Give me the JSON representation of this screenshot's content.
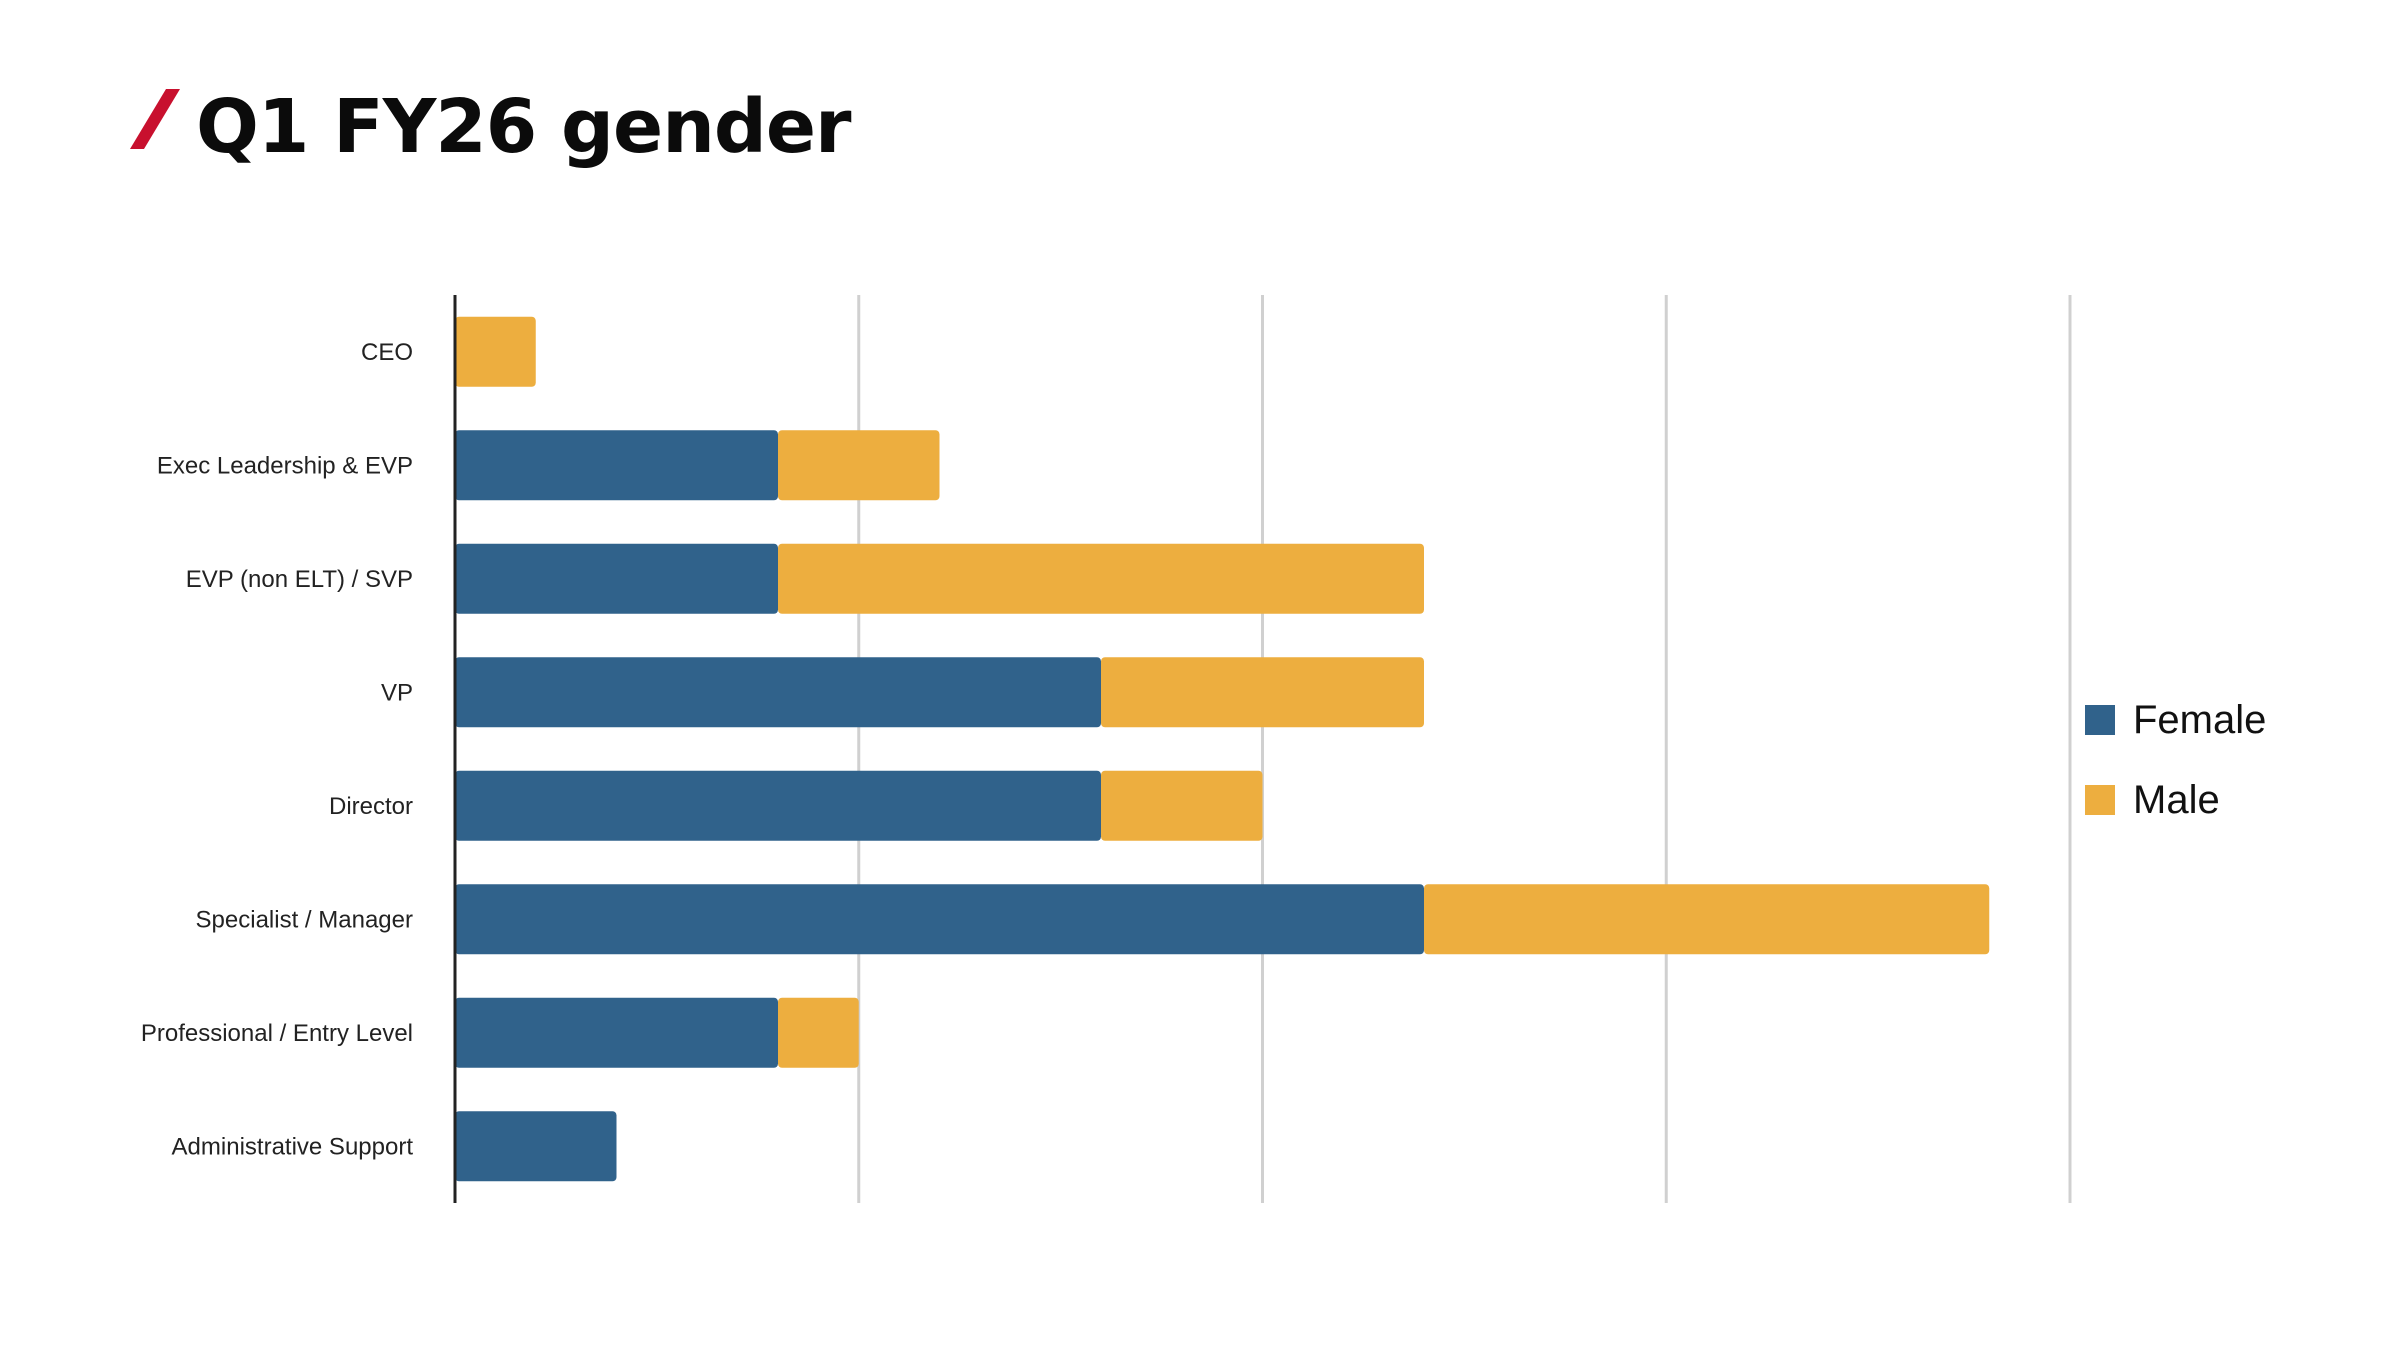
{
  "page": {
    "title": "Q1 FY26 gender",
    "accent_color": "#c8102e"
  },
  "legend": {
    "items": [
      {
        "label": "Female",
        "color": "#30628b"
      },
      {
        "label": "Male",
        "color": "#edae3f"
      }
    ]
  },
  "chart_data": {
    "type": "bar",
    "orientation": "horizontal",
    "stacked": true,
    "title": "Q1 FY26 gender",
    "xlabel": "",
    "ylabel": "",
    "categories": [
      "CEO",
      "Exec Leadership & EVP",
      "EVP (non ELT) / SVP",
      "VP",
      "Director",
      "Specialist / Manager",
      "Professional / Entry Level",
      "Administrative Support"
    ],
    "series": [
      {
        "name": "Female",
        "color": "#30628b",
        "values": [
          0,
          4,
          4,
          8,
          8,
          12,
          4,
          2
        ]
      },
      {
        "name": "Male",
        "color": "#edae3f",
        "values": [
          1,
          2,
          8,
          4,
          2,
          7,
          1,
          0
        ]
      }
    ],
    "xlim": [
      0,
      20
    ],
    "x_gridlines": [
      5,
      10,
      15,
      20
    ],
    "tick_labels_visible": false,
    "grid": true,
    "legend_position": "right"
  }
}
